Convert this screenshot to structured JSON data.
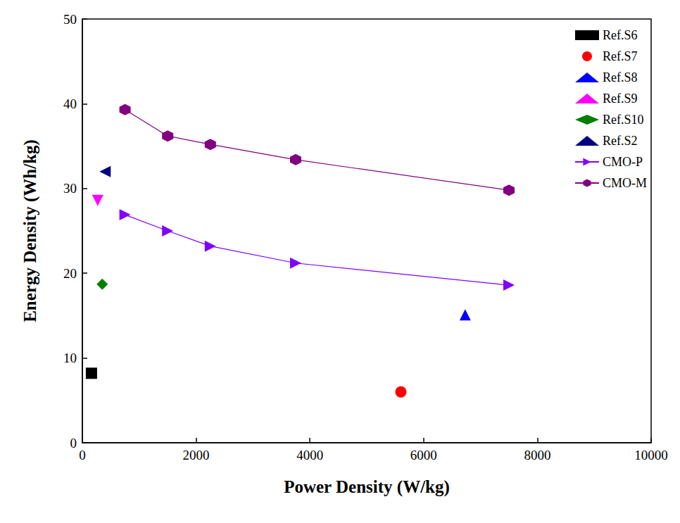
{
  "chart_data": {
    "type": "scatter",
    "x_label": "Power Density (W/kg)",
    "y_label": "Energy Density (Wh/kg)",
    "xlim": [
      0,
      10000
    ],
    "xticks": [
      0,
      2000,
      4000,
      6000,
      8000,
      10000
    ],
    "ylim": [
      0,
      50
    ],
    "yticks": [
      0,
      10,
      20,
      30,
      40,
      50
    ],
    "grid": false,
    "legend": "upper right",
    "series": [
      {
        "name": "Ref.S6",
        "type": "scatter",
        "color": "#000000",
        "marker": "square",
        "x": [
          160
        ],
        "values": [
          8.2
        ]
      },
      {
        "name": "Ref.S7",
        "type": "scatter",
        "color": "#ff0000",
        "marker": "circle",
        "x": [
          5600
        ],
        "values": [
          6.0
        ]
      },
      {
        "name": "Ref.S8",
        "type": "scatter",
        "color": "#0000ff",
        "marker": "triangle",
        "x": [
          6730
        ],
        "values": [
          15.1
        ]
      },
      {
        "name": "Ref.S9",
        "type": "scatter",
        "color": "#ff00ff",
        "marker": "triangle-down",
        "x": [
          270
        ],
        "values": [
          28.6
        ]
      },
      {
        "name": "Ref.S10",
        "type": "scatter",
        "color": "#008000",
        "marker": "diamond",
        "x": [
          350
        ],
        "values": [
          18.7
        ]
      },
      {
        "name": "Ref.S2",
        "type": "scatter",
        "color": "#000080",
        "marker": "triangle-left",
        "x": [
          400
        ],
        "values": [
          32.0
        ]
      },
      {
        "name": "CMO-P",
        "type": "line",
        "color": "#8000ff",
        "marker": "triangle-right",
        "x": [
          750,
          1500,
          2250,
          3750,
          7500
        ],
        "values": [
          26.9,
          25.0,
          23.2,
          21.2,
          18.6
        ]
      },
      {
        "name": "CMO-M",
        "type": "line",
        "color": "#800080",
        "marker": "hexagon",
        "x": [
          750,
          1500,
          2250,
          3750,
          7500
        ],
        "values": [
          39.3,
          36.2,
          35.2,
          33.4,
          29.8
        ]
      }
    ]
  }
}
